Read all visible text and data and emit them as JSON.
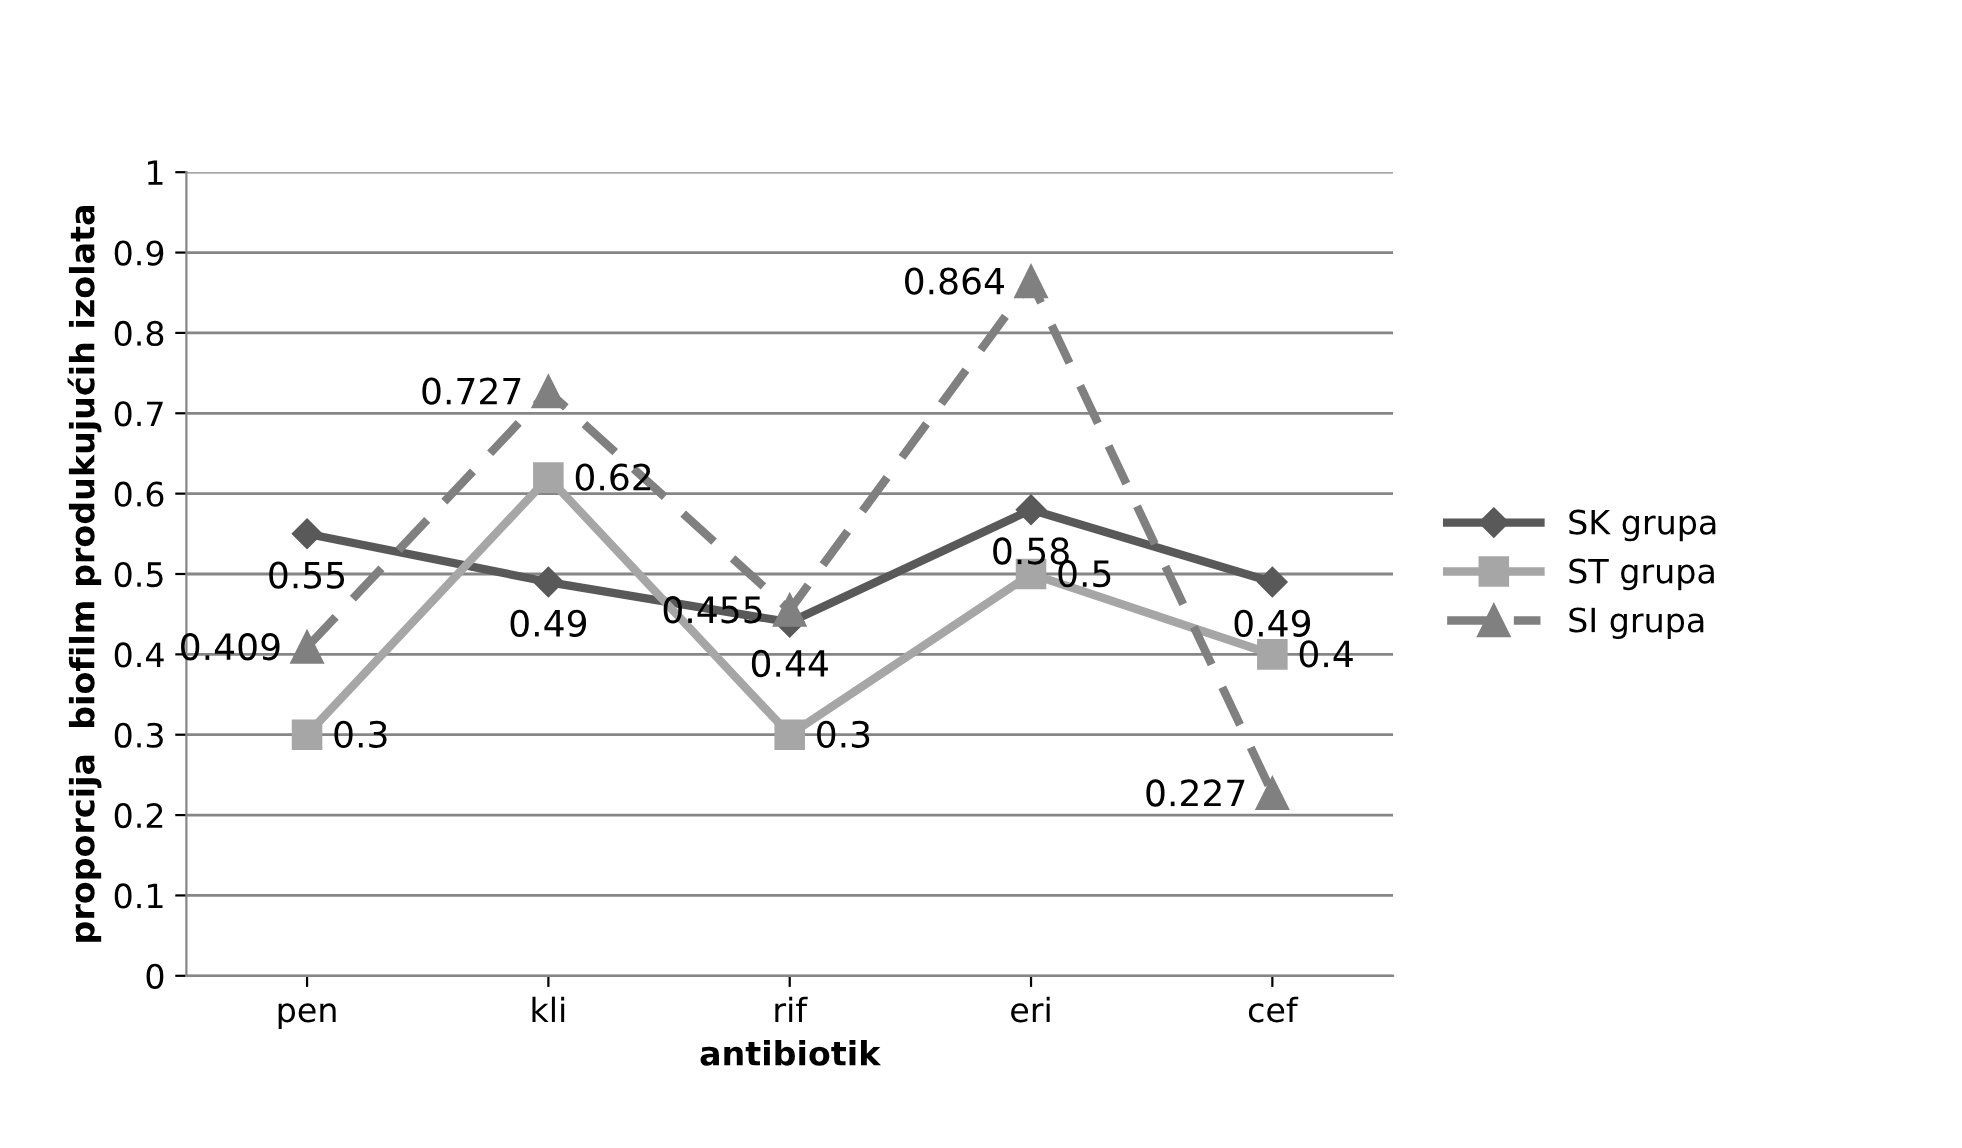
{
  "chart_data": {
    "type": "line",
    "xlabel": "antibiotik",
    "ylabel": "proporcija  biofilm produkujućih izolata",
    "categories": [
      "pen",
      "kli",
      "rif",
      "eri",
      "cef"
    ],
    "series": [
      {
        "name": "SK grupa",
        "color": "#595959",
        "marker": "diamond",
        "line_style": "solid",
        "values": [
          0.55,
          0.49,
          0.44,
          0.58,
          0.49
        ]
      },
      {
        "name": "ST grupa",
        "color": "#a6a6a6",
        "marker": "square",
        "line_style": "solid",
        "values": [
          0.3,
          0.62,
          0.3,
          0.5,
          0.4
        ]
      },
      {
        "name": "SI grupa",
        "color": "#808080",
        "marker": "triangle",
        "line_style": "dashed",
        "values": [
          0.409,
          0.727,
          0.455,
          0.864,
          0.227
        ]
      }
    ],
    "ylim": [
      0,
      1
    ],
    "yticks": [
      0,
      0.1,
      0.2,
      0.3,
      0.4,
      0.5,
      0.6,
      0.7,
      0.8,
      0.9,
      1
    ],
    "grid": "y",
    "legend": "right",
    "data_labels": true
  }
}
